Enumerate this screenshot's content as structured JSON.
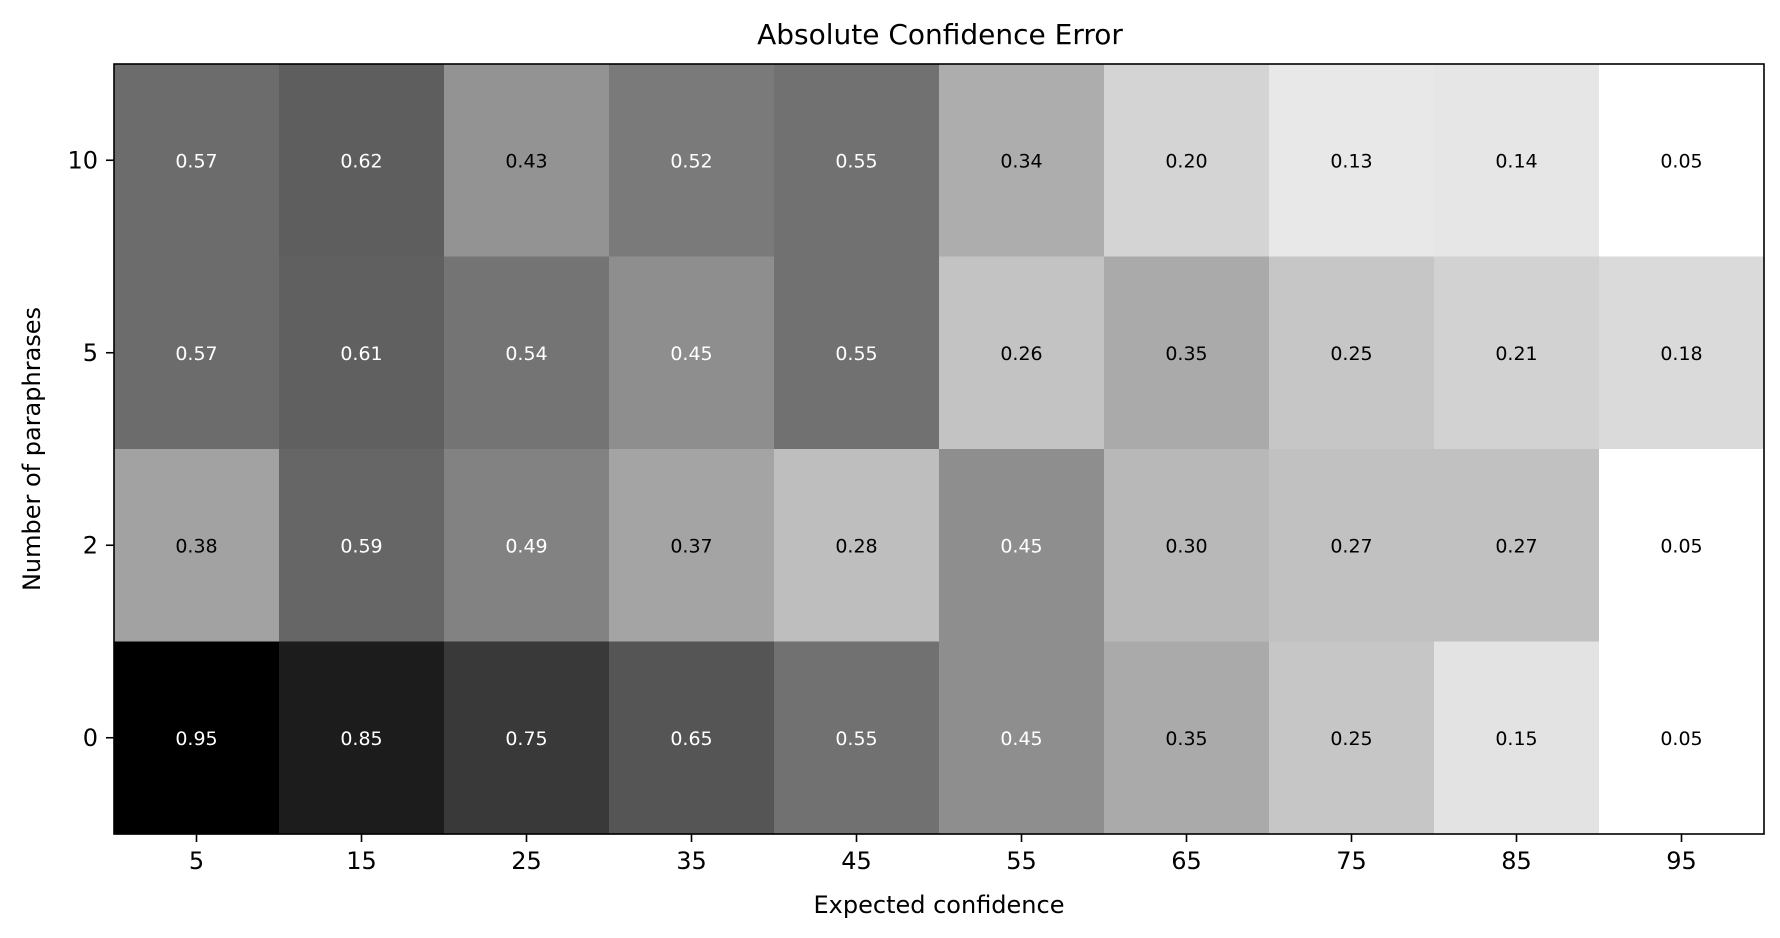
{
  "chart_data": {
    "type": "heatmap",
    "title": "Absolute Confidence Error",
    "xlabel": "Expected confidence",
    "ylabel": "Number of paraphrases",
    "x_categories": [
      "5",
      "15",
      "25",
      "35",
      "45",
      "55",
      "65",
      "75",
      "85",
      "95"
    ],
    "y_categories": [
      "10",
      "5",
      "2",
      "0"
    ],
    "values": [
      [
        0.57,
        0.62,
        0.43,
        0.52,
        0.55,
        0.34,
        0.2,
        0.13,
        0.14,
        0.05
      ],
      [
        0.57,
        0.61,
        0.54,
        0.45,
        0.55,
        0.26,
        0.35,
        0.25,
        0.21,
        0.18
      ],
      [
        0.38,
        0.59,
        0.49,
        0.37,
        0.28,
        0.45,
        0.3,
        0.27,
        0.27,
        0.05
      ],
      [
        0.95,
        0.85,
        0.75,
        0.65,
        0.55,
        0.45,
        0.35,
        0.25,
        0.15,
        0.05
      ]
    ],
    "cell_labels": [
      [
        "0.57",
        "0.62",
        "0.43",
        "0.52",
        "0.55",
        "0.34",
        "0.20",
        "0.13",
        "0.14",
        "0.05"
      ],
      [
        "0.57",
        "0.61",
        "0.54",
        "0.45",
        "0.55",
        "0.26",
        "0.35",
        "0.25",
        "0.21",
        "0.18"
      ],
      [
        "0.38",
        "0.59",
        "0.49",
        "0.37",
        "0.28",
        "0.45",
        "0.30",
        "0.27",
        "0.27",
        "0.05"
      ],
      [
        "0.95",
        "0.85",
        "0.75",
        "0.65",
        "0.55",
        "0.45",
        "0.35",
        "0.25",
        "0.15",
        "0.05"
      ]
    ],
    "colormap": "grayscale-reversed",
    "color_low": "#ffffff",
    "color_high": "#000000",
    "grid": false,
    "legend": "none"
  }
}
